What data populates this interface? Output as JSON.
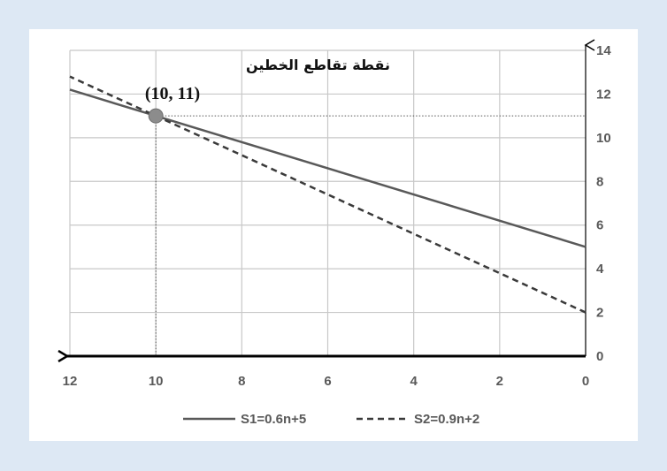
{
  "chart_data": {
    "type": "line",
    "title": "",
    "xlabel": "",
    "ylabel": "",
    "xlim": [
      0,
      12
    ],
    "ylim": [
      0,
      14
    ],
    "x_reversed": true,
    "y_axis_side": "right",
    "grid": true,
    "x_ticks": [
      "0",
      "2",
      "4",
      "6",
      "8",
      "10",
      "12"
    ],
    "y_ticks": [
      "0",
      "2",
      "4",
      "6",
      "8",
      "10",
      "12",
      "14"
    ],
    "series": [
      {
        "name": "S1=0.6n+5",
        "style": "solid",
        "color": "#595959",
        "x": [
          0,
          12
        ],
        "y": [
          5,
          12.2
        ]
      },
      {
        "name": "S2=0.9n+2",
        "style": "dashed",
        "color": "#3a3a3a",
        "x": [
          0,
          12
        ],
        "y": [
          2,
          12.8
        ]
      }
    ],
    "intersection": {
      "x": 10,
      "y": 11
    },
    "annotations": {
      "title": "نقطة تقاطع الخطين",
      "point_label": "(10, 11)"
    },
    "legend_position": "bottom"
  }
}
